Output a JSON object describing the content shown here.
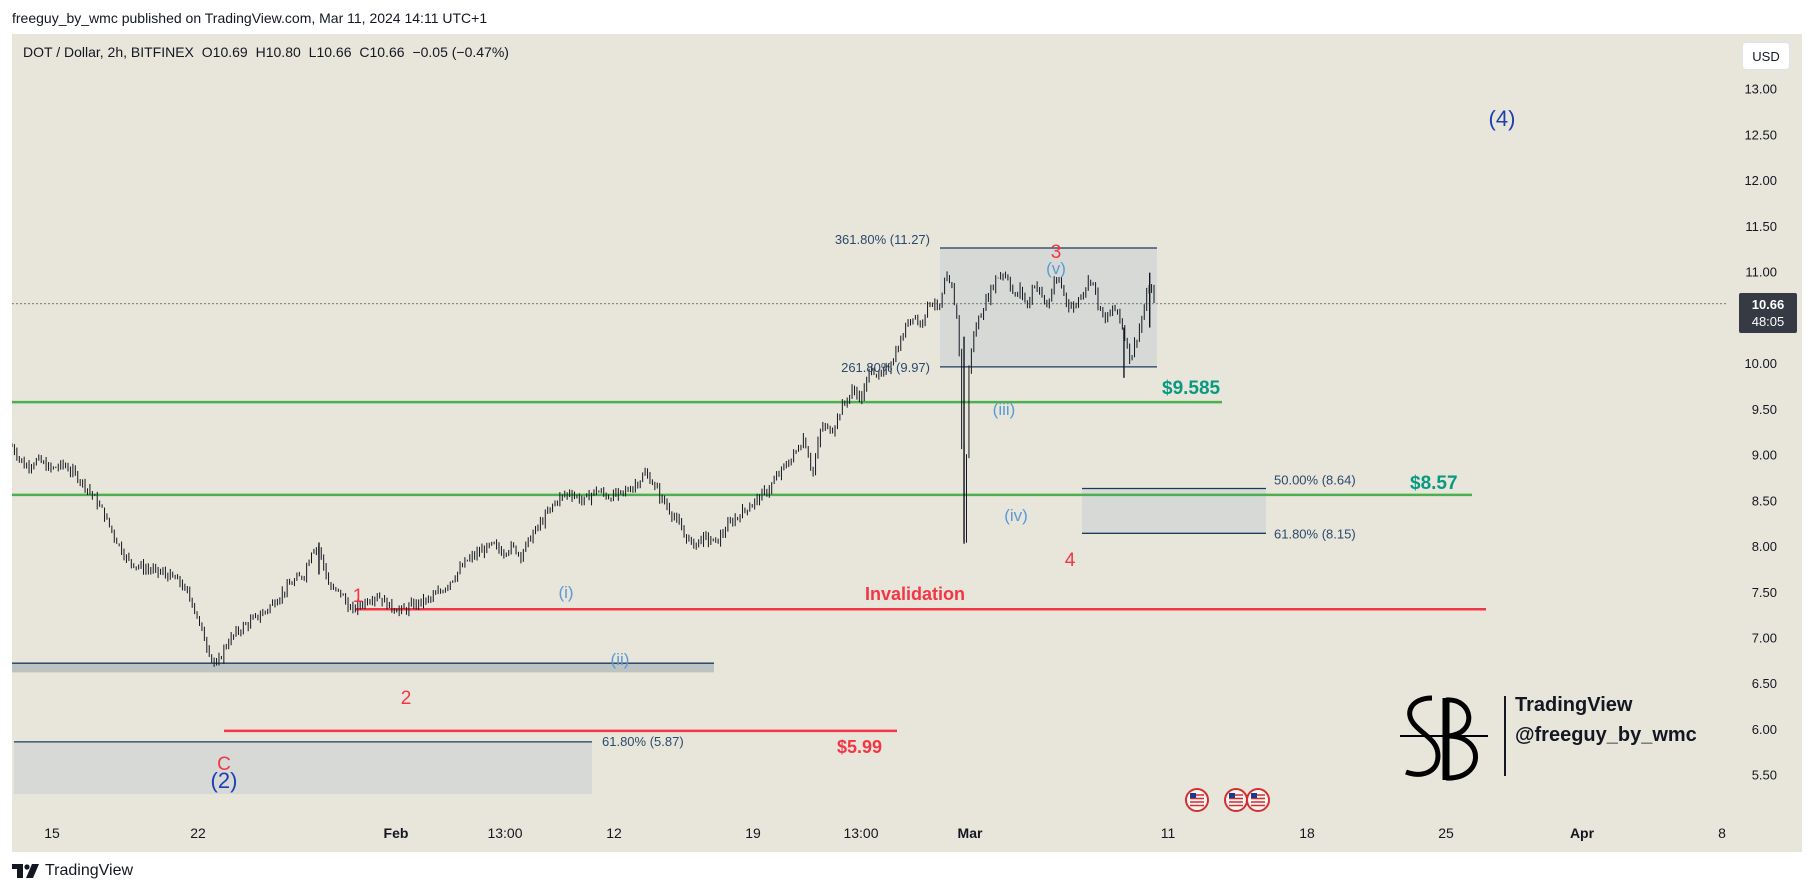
{
  "publisher_line": "freeguy_by_wmc published on TradingView.com, Mar 11, 2024 14:11 UTC+1",
  "legend": {
    "symbol": "DOT / Dollar, 2h, BITFINEX",
    "open": "O10.69",
    "high": "H10.80",
    "low": "L10.66",
    "close": "C10.66",
    "change": "−0.05 (−0.47%)"
  },
  "currency_button": "USD",
  "last_price": {
    "price": "10.66",
    "countdown": "48:05",
    "value": 10.66
  },
  "watermark": {
    "brand": "TradingView",
    "handle": "@freeguy_by_wmc"
  },
  "footer_brand": "TradingView",
  "colors": {
    "background": "#e8e5da",
    "support_green": "#4caf50",
    "green_text": "#089981",
    "red": "#f23645",
    "wave_blue": "#1e3fb0",
    "subwave_blue": "#5b9bd5",
    "fib_box": "#cfd4d3",
    "fib_line": "#1f3a5f",
    "candle": "#131722",
    "axis_text": "#131722"
  },
  "chart_data": {
    "type": "candlestick",
    "interval": "2h",
    "price_axis": {
      "ticks": [
        "13.00",
        "12.50",
        "12.00",
        "11.50",
        "11.00",
        "10.50",
        "10.00",
        "9.50",
        "9.00",
        "8.50",
        "8.00",
        "7.50",
        "7.00",
        "6.50",
        "6.00",
        "5.50"
      ],
      "range": [
        5.3,
        13.5
      ]
    },
    "time_axis": {
      "ticks": [
        "15",
        "22",
        "Feb",
        "13:00",
        "12",
        "19",
        "13:00",
        "Mar",
        "11",
        "18",
        "25",
        "Apr",
        "8"
      ]
    },
    "price_path": [
      [
        0,
        9.1
      ],
      [
        0.6,
        8.88
      ],
      [
        1.2,
        8.95
      ],
      [
        1.8,
        8.85
      ],
      [
        2.4,
        8.9
      ],
      [
        3,
        8.78
      ],
      [
        3.6,
        8.62
      ],
      [
        4.2,
        8.4
      ],
      [
        4.8,
        8.1
      ],
      [
        5.4,
        7.85
      ],
      [
        6,
        7.78
      ],
      [
        6.6,
        7.74
      ],
      [
        7.2,
        7.7
      ],
      [
        7.8,
        7.62
      ],
      [
        8.4,
        7.4
      ],
      [
        8.8,
        7.1
      ],
      [
        9.2,
        6.85
      ],
      [
        9.5,
        6.68
      ],
      [
        10,
        6.95
      ],
      [
        10.6,
        7.1
      ],
      [
        11.2,
        7.2
      ],
      [
        11.8,
        7.3
      ],
      [
        12.4,
        7.45
      ],
      [
        13,
        7.6
      ],
      [
        13.6,
        7.7
      ],
      [
        14,
        8.0
      ],
      [
        14.3,
        7.98
      ],
      [
        14.8,
        7.55
      ],
      [
        15.3,
        7.5
      ],
      [
        15.8,
        7.3
      ],
      [
        16.4,
        7.4
      ],
      [
        17,
        7.48
      ],
      [
        17.6,
        7.35
      ],
      [
        18.2,
        7.3
      ],
      [
        18.8,
        7.38
      ],
      [
        19.4,
        7.42
      ],
      [
        20,
        7.52
      ],
      [
        20.6,
        7.68
      ],
      [
        21.2,
        7.85
      ],
      [
        21.8,
        7.95
      ],
      [
        22.4,
        8.02
      ],
      [
        22.8,
        7.95
      ],
      [
        23.3,
        8.0
      ],
      [
        23.7,
        7.92
      ],
      [
        24.2,
        8.12
      ],
      [
        24.8,
        8.32
      ],
      [
        25.4,
        8.52
      ],
      [
        26,
        8.6
      ],
      [
        26.6,
        8.5
      ],
      [
        27.2,
        8.62
      ],
      [
        27.8,
        8.55
      ],
      [
        28.4,
        8.58
      ],
      [
        29,
        8.68
      ],
      [
        29.5,
        8.8
      ],
      [
        29.8,
        8.72
      ],
      [
        30.2,
        8.55
      ],
      [
        30.8,
        8.35
      ],
      [
        31.2,
        8.18
      ],
      [
        31.7,
        8.02
      ],
      [
        32.2,
        8.1
      ],
      [
        32.8,
        8.05
      ],
      [
        33.4,
        8.25
      ],
      [
        34,
        8.38
      ],
      [
        34.6,
        8.5
      ],
      [
        35.2,
        8.62
      ],
      [
        35.8,
        8.82
      ],
      [
        36.4,
        9.0
      ],
      [
        36.9,
        9.2
      ],
      [
        37.3,
        8.8
      ],
      [
        37.7,
        9.32
      ],
      [
        38.2,
        9.28
      ],
      [
        38.7,
        9.55
      ],
      [
        39.2,
        9.72
      ],
      [
        39.6,
        9.62
      ],
      [
        40,
        9.98
      ],
      [
        40.4,
        9.85
      ],
      [
        40.8,
        9.95
      ],
      [
        41.1,
        10.1
      ],
      [
        41.4,
        10.25
      ],
      [
        41.7,
        10.45
      ],
      [
        42,
        10.55
      ],
      [
        42.3,
        10.42
      ],
      [
        42.6,
        10.62
      ],
      [
        42.9,
        10.7
      ],
      [
        43.2,
        10.58
      ],
      [
        43.5,
        10.95
      ],
      [
        43.8,
        10.8
      ],
      [
        44.1,
        10.4
      ],
      [
        44.35,
        8.05
      ],
      [
        44.6,
        10.1
      ],
      [
        44.9,
        10.4
      ],
      [
        45.2,
        10.6
      ],
      [
        45.5,
        10.75
      ],
      [
        45.8,
        10.92
      ],
      [
        46.1,
        11.0
      ],
      [
        46.4,
        10.95
      ],
      [
        46.7,
        10.72
      ],
      [
        47,
        10.82
      ],
      [
        47.3,
        10.62
      ],
      [
        47.6,
        10.9
      ],
      [
        47.9,
        10.78
      ],
      [
        48.2,
        10.62
      ],
      [
        48.5,
        10.85
      ],
      [
        48.8,
        10.92
      ],
      [
        49.1,
        10.7
      ],
      [
        49.4,
        10.6
      ],
      [
        49.7,
        10.72
      ],
      [
        50,
        10.85
      ],
      [
        50.3,
        10.95
      ],
      [
        50.6,
        10.65
      ],
      [
        50.9,
        10.45
      ],
      [
        51.2,
        10.6
      ],
      [
        51.5,
        10.58
      ],
      [
        51.8,
        10.35
      ],
      [
        52.1,
        10.05
      ],
      [
        52.4,
        10.3
      ],
      [
        52.7,
        10.55
      ],
      [
        53,
        10.9
      ],
      [
        53.2,
        10.66
      ]
    ],
    "horizontal_levels": [
      {
        "price": 9.585,
        "label": "$9.585",
        "color": "green"
      },
      {
        "price": 8.57,
        "label": "$8.57",
        "color": "green"
      },
      {
        "price": 7.32,
        "label": "Invalidation",
        "color": "red"
      },
      {
        "price": 5.99,
        "label": "$5.99",
        "color": "red"
      }
    ],
    "fib_zones": [
      {
        "label_top": "361.80% (11.27)",
        "label_bottom": "261.80% (9.97)",
        "top": 11.27,
        "bottom": 9.97
      },
      {
        "label_top": "50.00% (8.64)",
        "label_bottom": "61.80% (8.15)",
        "top": 8.64,
        "bottom": 8.15
      },
      {
        "label_top": "61.80% (5.87)",
        "top": 5.87,
        "bottom": 5.3
      },
      {
        "top": 6.73,
        "bottom": 6.63
      }
    ],
    "wave_labels": {
      "major": [
        "(2)",
        "(4)"
      ],
      "intermediate": [
        "C",
        "1",
        "2",
        "3",
        "4"
      ],
      "minor": [
        "(i)",
        "(ii)",
        "(iii)",
        "(iv)",
        "(v)"
      ]
    },
    "event_markers": 3
  }
}
